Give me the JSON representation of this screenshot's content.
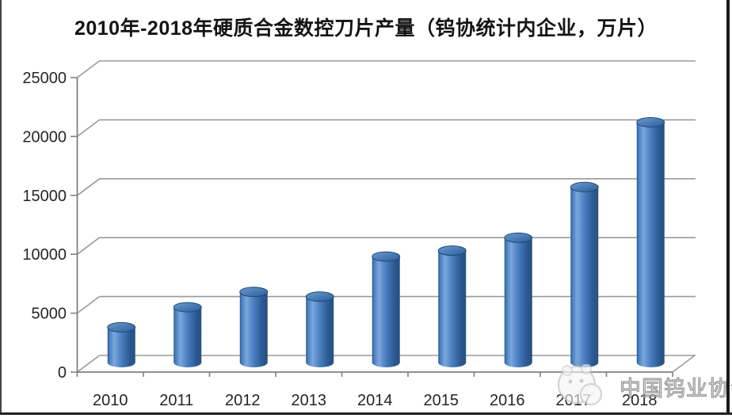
{
  "title": "2010年-2018年硬质合金数控刀片产量（钨协统计内企业，万片）",
  "watermark": {
    "label": "中国钨业协会",
    "logo": "association-logo"
  },
  "chart_data": {
    "type": "bar",
    "subtype": "3d-cylinder",
    "title": "2010年-2018年硬质合金数控刀片产量（钨协统计内企业，万片）",
    "categories": [
      "2010",
      "2011",
      "2012",
      "2013",
      "2014",
      "2015",
      "2016",
      "2017",
      "2018"
    ],
    "values": [
      3100,
      4800,
      6100,
      5700,
      9100,
      9600,
      10700,
      15000,
      20500
    ],
    "unit": "万片",
    "xlabel": "",
    "ylabel": "",
    "ylim": [
      0,
      25000
    ],
    "yticks": [
      0,
      5000,
      10000,
      15000,
      20000,
      25000
    ],
    "grid": true,
    "legend": "none",
    "colors": {
      "grid": "#9a9a9a",
      "axis": "#808080",
      "tick": "#808080",
      "label": "#262626",
      "bar_body_light": "#7aa7dc",
      "bar_body_main": "#4a7ec0",
      "bar_body_dark": "#2a5890",
      "bar_body_edge": "#27527f",
      "bar_top_light": "#6b9bd2",
      "bar_top_dark": "#2c5d96",
      "bar_outline": "#1d4a7c"
    }
  }
}
